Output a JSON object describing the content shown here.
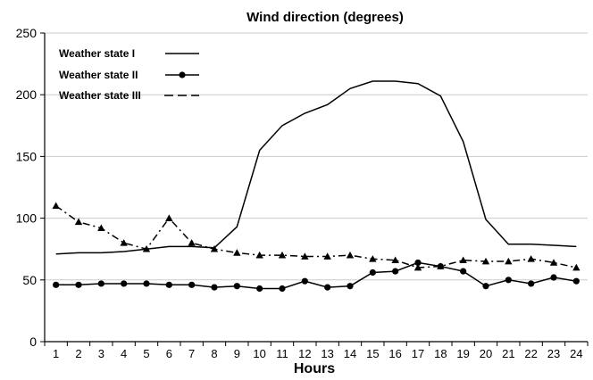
{
  "chart_data": {
    "type": "line",
    "title": "Wind direction (degrees)",
    "xlabel": "Hours",
    "ylabel": "",
    "x": [
      1,
      2,
      3,
      4,
      5,
      6,
      7,
      8,
      9,
      10,
      11,
      12,
      13,
      14,
      15,
      16,
      17,
      18,
      19,
      20,
      21,
      22,
      23,
      24
    ],
    "ylim": [
      0,
      250
    ],
    "yticks": [
      0,
      50,
      100,
      150,
      200,
      250
    ],
    "grid": "horizontal",
    "legend": "top-left",
    "series": [
      {
        "name": "Weather state I",
        "style": "solid",
        "marker": "none",
        "values": [
          71,
          72,
          72,
          73,
          75,
          77,
          77,
          76,
          93,
          155,
          175,
          185,
          192,
          205,
          211,
          211,
          209,
          199,
          162,
          99,
          79,
          79,
          78,
          77
        ]
      },
      {
        "name": "Weather state II",
        "style": "solid",
        "marker": "circle",
        "values": [
          46,
          46,
          47,
          47,
          47,
          46,
          46,
          44,
          45,
          43,
          43,
          49,
          44,
          45,
          56,
          57,
          64,
          61,
          57,
          45,
          50,
          47,
          52,
          49
        ]
      },
      {
        "name": "Weather state III",
        "style": "dash-dot",
        "marker": "triangle",
        "values": [
          110,
          97,
          92,
          80,
          75,
          100,
          80,
          75,
          72,
          70,
          70,
          69,
          69,
          70,
          67,
          66,
          60,
          61,
          66,
          65,
          65,
          67,
          64,
          60
        ]
      }
    ]
  }
}
